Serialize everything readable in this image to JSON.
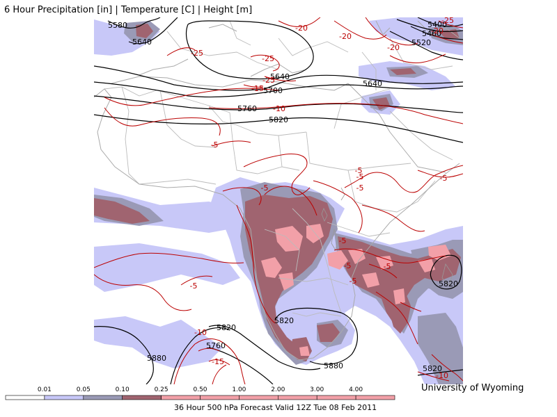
{
  "title": "6 Hour Precipitation [in] | Temperature [C] | Height [m]",
  "credit": "University of Wyoming",
  "footer": "36 Hour 500 hPa Forecast Valid 12Z Tue 08 Feb 2011",
  "colors": {
    "light_blue": "#c8c8f8",
    "grey_blue": "#9a9ab6",
    "maroon": "#a06470",
    "pink": "#f2a0a8",
    "temperature_contour": "#bb0000",
    "height_contour": "#000000",
    "country_border": "#bbbbbb"
  },
  "legend": {
    "labels": [
      "0.01",
      "0.05",
      "0.10",
      "0.25",
      "0.50",
      "1.00",
      "2.00",
      "3.00",
      "4.00"
    ],
    "colors": [
      "#ffffff",
      "#c8c8f8",
      "#9a9ab6",
      "#a06470",
      "#f2a0a8",
      "#f2a0a8",
      "#f2a0a8",
      "#f2a0a8",
      "#f2a0a8",
      "#f2a0a8"
    ]
  },
  "height_labels": [
    "5580",
    "5640",
    "5640",
    "5700",
    "5760",
    "5820",
    "5640",
    "5400",
    "5460",
    "5520",
    "5820",
    "5880",
    "5820",
    "5760",
    "5880",
    "5820",
    "5820"
  ],
  "temperature_labels": [
    "-20",
    "-25",
    "-25",
    "-25",
    "-20",
    "-15",
    "-10",
    "-5",
    "-5",
    "-5",
    "-5",
    "-5",
    "-5",
    "-5",
    "-5",
    "-5",
    "-5",
    "-10",
    "-15",
    "-10",
    "-20",
    "-25",
    "-20",
    "-5"
  ]
}
